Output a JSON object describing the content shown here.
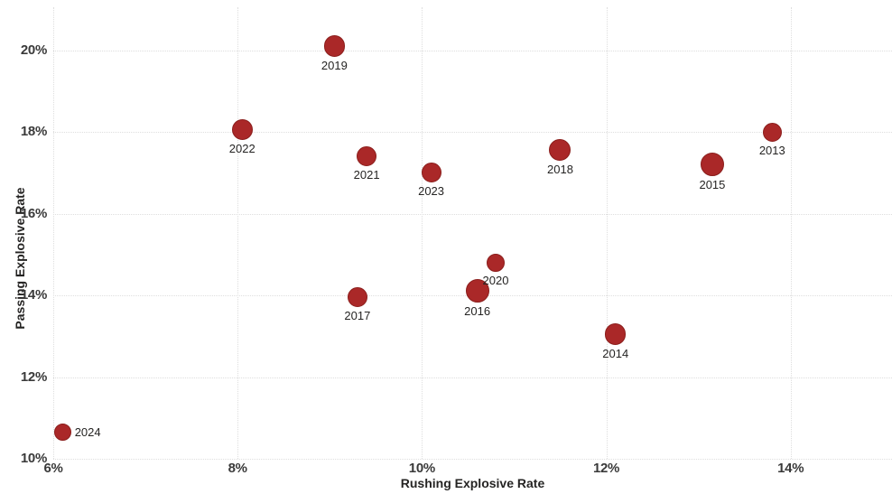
{
  "chart_data": {
    "type": "scatter",
    "title": "",
    "xlabel": "Rushing Explosive Rate",
    "ylabel": "Passing Explosive Rate",
    "xlim": [
      6,
      15.1
    ],
    "ylim": [
      10,
      21.05
    ],
    "grid": true,
    "legend": false,
    "gridline_color": "#dedede",
    "marker_color": "#AA2828",
    "marker_border_color": "#8B1E1C",
    "x_ticks": [
      {
        "label": "6%",
        "value": 6
      },
      {
        "label": "8%",
        "value": 8
      },
      {
        "label": "10%",
        "value": 10
      },
      {
        "label": "12%",
        "value": 12
      },
      {
        "label": "14%",
        "value": 14
      }
    ],
    "y_ticks": [
      {
        "label": "10%",
        "value": 10
      },
      {
        "label": "12%",
        "value": 12
      },
      {
        "label": "14%",
        "value": 14
      },
      {
        "label": "16%",
        "value": 16
      },
      {
        "label": "18%",
        "value": 18
      },
      {
        "label": "20%",
        "value": 20
      }
    ],
    "points": [
      {
        "label": "2013",
        "x": 13.8,
        "y": 18.0,
        "r": 10.5,
        "label_pos": "below"
      },
      {
        "label": "2014",
        "x": 12.1,
        "y": 13.05,
        "r": 11.7,
        "label_pos": "below"
      },
      {
        "label": "2015",
        "x": 13.15,
        "y": 17.2,
        "r": 13.0,
        "label_pos": "below"
      },
      {
        "label": "2016",
        "x": 10.6,
        "y": 14.1,
        "r": 13.0,
        "label_pos": "below"
      },
      {
        "label": "2017",
        "x": 9.3,
        "y": 13.95,
        "r": 11.0,
        "label_pos": "below"
      },
      {
        "label": "2018",
        "x": 11.5,
        "y": 17.55,
        "r": 12.0,
        "label_pos": "below"
      },
      {
        "label": "2019",
        "x": 9.05,
        "y": 20.1,
        "r": 11.7,
        "label_pos": "below"
      },
      {
        "label": "2020",
        "x": 10.8,
        "y": 14.8,
        "r": 10.3,
        "label_pos": "below"
      },
      {
        "label": "2021",
        "x": 9.4,
        "y": 17.4,
        "r": 11.0,
        "label_pos": "below"
      },
      {
        "label": "2022",
        "x": 8.05,
        "y": 18.05,
        "r": 11.7,
        "label_pos": "below"
      },
      {
        "label": "2023",
        "x": 10.1,
        "y": 17.0,
        "r": 11.0,
        "label_pos": "below"
      },
      {
        "label": "2024",
        "x": 6.1,
        "y": 10.65,
        "r": 9.5,
        "label_pos": "right"
      }
    ]
  }
}
